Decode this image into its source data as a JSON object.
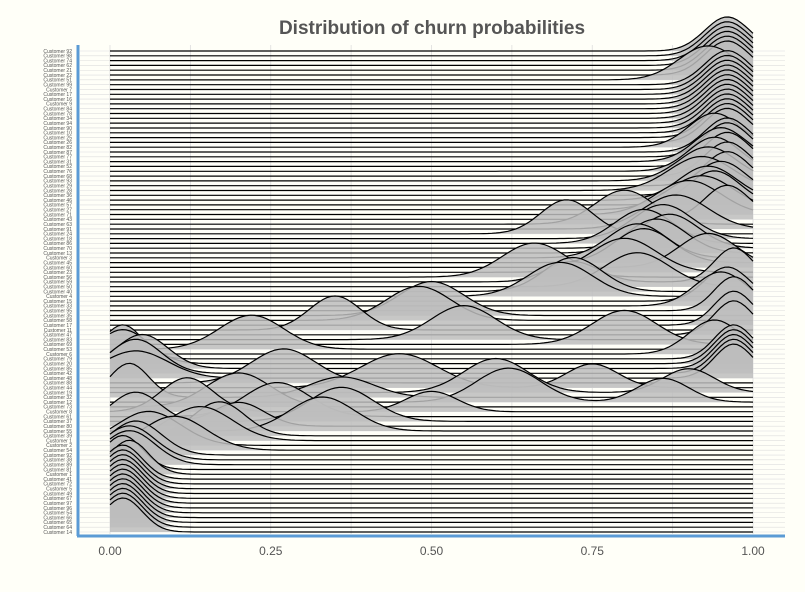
{
  "chart_data": {
    "type": "ridgeline",
    "title": "Distribution of churn probabilities",
    "xlabel": "",
    "ylabel": "",
    "xlim": [
      0.0,
      1.0
    ],
    "x_ticks": [
      "0.00",
      "0.25",
      "0.50",
      "0.75",
      "1.00"
    ],
    "x_tick_values": [
      0.0,
      0.25,
      0.5,
      0.75,
      1.0
    ],
    "grid": true,
    "legend": "none",
    "colors": {
      "background": "#fffff8",
      "axis": "#5b9bd5",
      "grid": "#dddddd",
      "fill": "#bdbdbd",
      "line": "#000000",
      "title": "#555555",
      "label": "#555555"
    },
    "categories": [
      "Customer 92",
      "Customer 98",
      "Customer 74",
      "Customer 62",
      "Customer 21",
      "Customer 22",
      "Customer 51",
      "Customer 99",
      "Customer 7",
      "Customer 17",
      "Customer 16",
      "Customer 9",
      "Customer 84",
      "Customer 78",
      "Customer 34",
      "Customer 94",
      "Customer 90",
      "Customer 10",
      "Customer 25",
      "Customer 26",
      "Customer 82",
      "Customer 87",
      "Customer 77",
      "Customer 31",
      "Customer 52",
      "Customer 76",
      "Customer 68",
      "Customer 93",
      "Customer 29",
      "Customer 28",
      "Customer 36",
      "Customer 46",
      "Customer 57",
      "Customer 27",
      "Customer 71",
      "Customer 43",
      "Customer 63",
      "Customer 91",
      "Customer 24",
      "Customer 18",
      "Customer 86",
      "Customer 70",
      "Customer 13",
      "Customer 3",
      "Customer 45",
      "Customer 60",
      "Customer 23",
      "Customer 56",
      "Customer 59",
      "Customer 50",
      "Customer 40",
      "Customer 4",
      "Customer 15",
      "Customer 33",
      "Customer 95",
      "Customer 35",
      "Customer 58",
      "Customer 17",
      "Customer 11",
      "Customer 47",
      "Customer 83",
      "Customer 69",
      "Customer 53",
      "Customer 6",
      "Customer 79",
      "Customer 20",
      "Customer 85",
      "Customer 42",
      "Customer 48",
      "Customer 88",
      "Customer 44",
      "Customer 19",
      "Customer 32",
      "Customer 12",
      "Customer 73",
      "Customer 8",
      "Customer 61",
      "Customer 37",
      "Customer 80",
      "Customer 55",
      "Customer 39",
      "Customer 1",
      "Customer 2",
      "Customer 54",
      "Customer 92",
      "Customer 38",
      "Customer 89",
      "Customer 81",
      "Customer 1",
      "Customer 41",
      "Customer 72",
      "Customer 5",
      "Customer 49",
      "Customer 67",
      "Customer 97",
      "Customer 96",
      "Customer 54",
      "Customer 66",
      "Customer 65",
      "Customer 64",
      "Customer 14"
    ],
    "series": [
      {
        "peaks": [
          [
            0.96,
            1.0,
            0.035
          ]
        ]
      },
      {
        "peaks": [
          [
            0.96,
            1.0,
            0.035
          ]
        ]
      },
      {
        "peaks": [
          [
            0.96,
            1.0,
            0.035
          ]
        ]
      },
      {
        "peaks": [
          [
            0.96,
            1.0,
            0.035
          ]
        ]
      },
      {
        "peaks": [
          [
            0.96,
            1.0,
            0.035
          ]
        ]
      },
      {
        "peaks": [
          [
            0.96,
            1.0,
            0.035
          ]
        ]
      },
      {
        "peaks": [
          [
            0.93,
            1.0,
            0.045
          ]
        ]
      },
      {
        "peaks": [
          [
            0.96,
            1.0,
            0.035
          ]
        ]
      },
      {
        "peaks": [
          [
            0.96,
            1.0,
            0.035
          ]
        ]
      },
      {
        "peaks": [
          [
            0.96,
            1.0,
            0.035
          ]
        ]
      },
      {
        "peaks": [
          [
            0.96,
            1.0,
            0.035
          ]
        ]
      },
      {
        "peaks": [
          [
            0.96,
            1.0,
            0.035
          ]
        ]
      },
      {
        "peaks": [
          [
            0.96,
            1.0,
            0.035
          ]
        ]
      },
      {
        "peaks": [
          [
            0.96,
            1.0,
            0.035
          ]
        ]
      },
      {
        "peaks": [
          [
            0.96,
            1.0,
            0.035
          ]
        ]
      },
      {
        "peaks": [
          [
            0.96,
            1.0,
            0.035
          ]
        ]
      },
      {
        "peaks": [
          [
            0.96,
            1.0,
            0.035
          ]
        ]
      },
      {
        "peaks": [
          [
            0.96,
            1.0,
            0.035
          ]
        ]
      },
      {
        "peaks": [
          [
            0.96,
            1.0,
            0.035
          ]
        ]
      },
      {
        "peaks": [
          [
            0.96,
            1.0,
            0.035
          ]
        ]
      },
      {
        "peaks": [
          [
            0.94,
            1.0,
            0.04
          ]
        ]
      },
      {
        "peaks": [
          [
            0.96,
            1.0,
            0.035
          ]
        ]
      },
      {
        "peaks": [
          [
            0.96,
            1.0,
            0.035
          ]
        ]
      },
      {
        "peaks": [
          [
            0.95,
            1.0,
            0.04
          ]
        ]
      },
      {
        "peaks": [
          [
            0.96,
            1.0,
            0.035
          ]
        ]
      },
      {
        "peaks": [
          [
            0.94,
            1.0,
            0.04
          ]
        ]
      },
      {
        "peaks": [
          [
            0.96,
            1.0,
            0.035
          ]
        ]
      },
      {
        "peaks": [
          [
            0.93,
            1.0,
            0.045
          ]
        ]
      },
      {
        "peaks": [
          [
            0.96,
            1.0,
            0.035
          ]
        ]
      },
      {
        "peaks": [
          [
            0.92,
            1.0,
            0.05
          ]
        ]
      },
      {
        "peaks": [
          [
            0.95,
            1.0,
            0.04
          ]
        ]
      },
      {
        "peaks": [
          [
            0.93,
            1.0,
            0.045
          ]
        ]
      },
      {
        "peaks": [
          [
            0.94,
            1.0,
            0.04
          ]
        ]
      },
      {
        "peaks": [
          [
            0.92,
            1.0,
            0.05
          ]
        ]
      },
      {
        "peaks": [
          [
            0.9,
            1.0,
            0.05
          ]
        ]
      },
      {
        "peaks": [
          [
            0.96,
            1.0,
            0.035
          ]
        ]
      },
      {
        "peaks": [
          [
            0.8,
            1.0,
            0.045
          ]
        ]
      },
      {
        "peaks": [
          [
            0.88,
            1.0,
            0.05
          ]
        ]
      },
      {
        "peaks": [
          [
            0.71,
            1.0,
            0.04
          ]
        ]
      },
      {
        "peaks": [
          [
            0.86,
            1.0,
            0.045
          ]
        ]
      },
      {
        "peaks": [
          [
            0.83,
            1.0,
            0.045
          ]
        ]
      },
      {
        "peaks": [
          [
            0.87,
            1.0,
            0.045
          ]
        ]
      },
      {
        "peaks": [
          [
            0.85,
            1.0,
            0.045
          ]
        ]
      },
      {
        "peaks": [
          [
            0.82,
            1.0,
            0.045
          ]
        ]
      },
      {
        "peaks": [
          [
            0.83,
            1.0,
            0.045
          ]
        ]
      },
      {
        "peaks": [
          [
            0.93,
            1.0,
            0.045
          ]
        ]
      },
      {
        "peaks": [
          [
            0.8,
            1.0,
            0.05
          ]
        ]
      },
      {
        "peaks": [
          [
            0.66,
            1.0,
            0.05
          ]
        ]
      },
      {
        "peaks": [
          [
            0.72,
            0.6,
            0.04
          ],
          [
            0.97,
            1.0,
            0.03
          ]
        ]
      },
      {
        "peaks": [
          [
            0.82,
            1.0,
            0.05
          ]
        ]
      },
      {
        "peaks": [
          [
            0.72,
            1.0,
            0.045
          ]
        ]
      },
      {
        "peaks": [
          [
            0.7,
            1.0,
            0.05
          ]
        ]
      },
      {
        "peaks": [
          [
            0.96,
            1.0,
            0.035
          ]
        ]
      },
      {
        "peaks": [
          [
            0.95,
            1.0,
            0.04
          ]
        ]
      },
      {
        "peaks": [
          [
            0.97,
            1.0,
            0.03
          ]
        ]
      },
      {
        "peaks": [
          [
            0.5,
            1.0,
            0.05
          ]
        ]
      },
      {
        "peaks": [
          [
            0.48,
            1.0,
            0.05
          ]
        ]
      },
      {
        "peaks": [
          [
            0.97,
            1.0,
            0.03
          ]
        ]
      },
      {
        "peaks": [
          [
            0.35,
            1.0,
            0.04
          ]
        ]
      },
      {
        "peaks": [
          [
            0.97,
            1.0,
            0.03
          ]
        ]
      },
      {
        "peaks": [
          [
            0.55,
            1.0,
            0.05
          ]
        ]
      },
      {
        "peaks": [
          [
            0.8,
            1.0,
            0.05
          ]
        ]
      },
      {
        "peaks": [
          [
            0.22,
            1.0,
            0.05
          ]
        ]
      },
      {
        "peaks": [
          [
            0.94,
            1.0,
            0.04
          ]
        ]
      },
      {
        "peaks": [
          [
            0.02,
            1.0,
            0.03
          ],
          [
            0.97,
            1.0,
            0.03
          ]
        ]
      },
      {
        "peaks": [
          [
            0.02,
            1.0,
            0.04
          ],
          [
            0.97,
            1.0,
            0.03
          ]
        ]
      },
      {
        "peaks": [
          [
            0.05,
            1.0,
            0.04
          ],
          [
            0.97,
            1.0,
            0.03
          ]
        ]
      },
      {
        "peaks": [
          [
            0.04,
            1.0,
            0.04
          ],
          [
            0.97,
            1.0,
            0.03
          ]
        ]
      },
      {
        "peaks": [
          [
            0.04,
            0.8,
            0.05
          ],
          [
            0.97,
            1.0,
            0.03
          ]
        ]
      },
      {
        "peaks": [
          [
            0.27,
            1.0,
            0.05
          ]
        ]
      },
      {
        "peaks": [
          [
            0.45,
            1.0,
            0.06
          ],
          [
            0.75,
            0.7,
            0.04
          ]
        ]
      },
      {
        "peaks": [
          [
            0.6,
            1.0,
            0.05
          ],
          [
            0.9,
            0.7,
            0.04
          ]
        ]
      },
      {
        "peaks": [
          [
            0.03,
            1.0,
            0.03
          ],
          [
            0.36,
            0.6,
            0.05
          ]
        ]
      },
      {
        "peaks": [
          [
            0.62,
            1.0,
            0.05
          ],
          [
            0.86,
            0.7,
            0.04
          ]
        ]
      },
      {
        "peaks": [
          [
            0.2,
            1.0,
            0.05
          ]
        ]
      },
      {
        "peaks": [
          [
            0.12,
            1.0,
            0.04
          ],
          [
            0.5,
            0.6,
            0.04
          ]
        ]
      },
      {
        "peaks": [
          [
            0.26,
            1.0,
            0.05
          ]
        ]
      },
      {
        "peaks": [
          [
            0.36,
            1.0,
            0.05
          ]
        ]
      },
      {
        "peaks": [
          [
            0.04,
            1.0,
            0.04
          ],
          [
            0.2,
            0.7,
            0.04
          ]
        ]
      },
      {
        "peaks": [
          [
            0.33,
            1.0,
            0.05
          ]
        ]
      },
      {
        "peaks": [
          [
            0.17,
            1.0,
            0.04
          ]
        ]
      },
      {
        "peaks": [
          [
            0.14,
            1.0,
            0.05
          ]
        ]
      },
      {
        "peaks": [
          [
            0.06,
            1.0,
            0.05
          ]
        ]
      },
      {
        "peaks": [
          [
            0.1,
            1.0,
            0.05
          ]
        ]
      },
      {
        "peaks": [
          [
            0.04,
            1.0,
            0.04
          ]
        ]
      },
      {
        "peaks": [
          [
            0.03,
            1.0,
            0.04
          ]
        ]
      },
      {
        "peaks": [
          [
            0.03,
            1.0,
            0.04
          ]
        ]
      },
      {
        "peaks": [
          [
            0.02,
            1.0,
            0.03
          ]
        ]
      },
      {
        "peaks": [
          [
            0.03,
            1.0,
            0.03
          ]
        ]
      },
      {
        "peaks": [
          [
            0.02,
            1.0,
            0.03
          ]
        ]
      },
      {
        "peaks": [
          [
            0.02,
            1.0,
            0.03
          ]
        ]
      },
      {
        "peaks": [
          [
            0.02,
            1.0,
            0.03
          ]
        ]
      },
      {
        "peaks": [
          [
            0.02,
            1.0,
            0.03
          ]
        ]
      },
      {
        "peaks": [
          [
            0.02,
            1.0,
            0.03
          ]
        ]
      },
      {
        "peaks": [
          [
            0.02,
            1.0,
            0.03
          ]
        ]
      },
      {
        "peaks": [
          [
            0.02,
            1.0,
            0.03
          ]
        ]
      },
      {
        "peaks": [
          [
            0.02,
            1.0,
            0.03
          ]
        ]
      },
      {
        "peaks": [
          [
            0.02,
            1.0,
            0.03
          ]
        ]
      },
      {
        "peaks": [
          [
            0.02,
            1.0,
            0.03
          ]
        ]
      },
      {
        "peaks": [
          [
            0.02,
            1.0,
            0.03
          ]
        ]
      },
      {
        "peaks": [
          [
            0.02,
            1.0,
            0.03
          ]
        ]
      }
    ]
  }
}
